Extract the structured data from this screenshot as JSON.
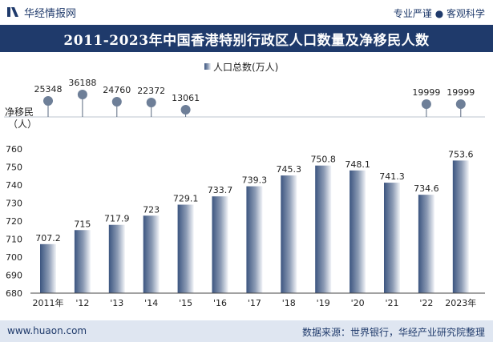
{
  "header": {
    "brand": "华经情报网",
    "slogan": "专业严谨 ● 客观科学"
  },
  "footer": {
    "url": "www.huaon.com",
    "source": "数据来源：世界银行，华经产业研究院整理"
  },
  "colors": {
    "navy": "#1f3a6b",
    "bar_dark": "#3c5580",
    "bar_light": "#f2f4f8",
    "dot": "#6e7f98",
    "stem": "#5a6a80"
  },
  "chart_data": [
    {
      "type": "bar",
      "title": "2011-2023年中国香港特别行政区人口数量及净移民人数",
      "legend": "人口总数(万人)",
      "categories": [
        "2011年",
        "'12",
        "'13",
        "'14",
        "'15",
        "'16",
        "'17",
        "'18",
        "'19",
        "'20",
        "'21",
        "'22",
        "2023年"
      ],
      "series": [
        {
          "name": "人口总数(万人)",
          "values": [
            707.2,
            715,
            717.9,
            723,
            729.1,
            733.7,
            739.3,
            745.3,
            750.8,
            748.1,
            741.3,
            734.6,
            753.6
          ]
        }
      ],
      "ylim": [
        680,
        760
      ],
      "yticks": [
        680,
        690,
        700,
        710,
        720,
        730,
        740,
        750,
        760
      ],
      "grid": false
    },
    {
      "type": "scatter",
      "ylabel": "净移民（人）",
      "categories": [
        "2011年",
        "'12",
        "'13",
        "'14",
        "'15",
        "'16",
        "'17",
        "'18",
        "'19",
        "'20",
        "'21",
        "'22",
        "2023年"
      ],
      "series": [
        {
          "name": "净移民",
          "values": [
            25348,
            36188,
            24760,
            22372,
            13061,
            null,
            null,
            null,
            null,
            null,
            null,
            19999,
            19999
          ]
        }
      ]
    }
  ]
}
